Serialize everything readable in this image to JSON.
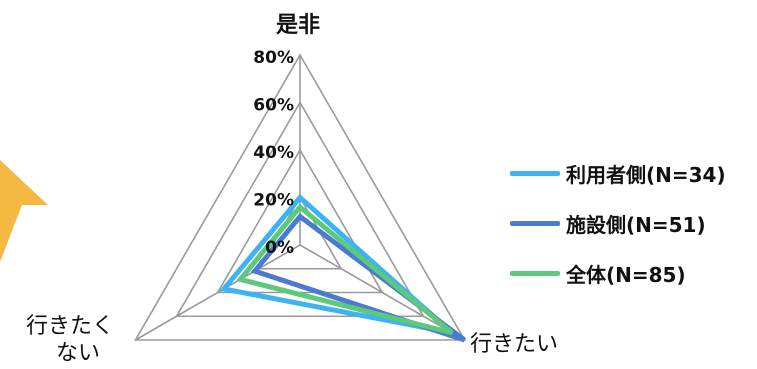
{
  "chart_data": {
    "type": "radar",
    "axes": [
      "是非",
      "行きたい",
      "行きたく\nない"
    ],
    "axis_labels": {
      "top": "是非",
      "right": "行きたい",
      "left_line1": "行きたく",
      "left_line2": "ない"
    },
    "ticks": [
      "0%",
      "20%",
      "40%",
      "60%",
      "80%"
    ],
    "tick_values": [
      0,
      20,
      40,
      60,
      80
    ],
    "rmax": 80,
    "series": [
      {
        "name": "利用者側(N=34)",
        "color": "#3db3f5",
        "values": [
          20,
          74,
          37
        ]
      },
      {
        "name": "施設側(N=51)",
        "color": "#4a7bd0",
        "values": [
          12,
          80,
          22
        ]
      },
      {
        "name": "全体(N=85)",
        "color": "#5dc97a",
        "values": [
          16,
          74,
          29
        ]
      }
    ],
    "legend": "right",
    "grid": true
  },
  "decoration": {
    "arrow_color": "#f4b942"
  }
}
